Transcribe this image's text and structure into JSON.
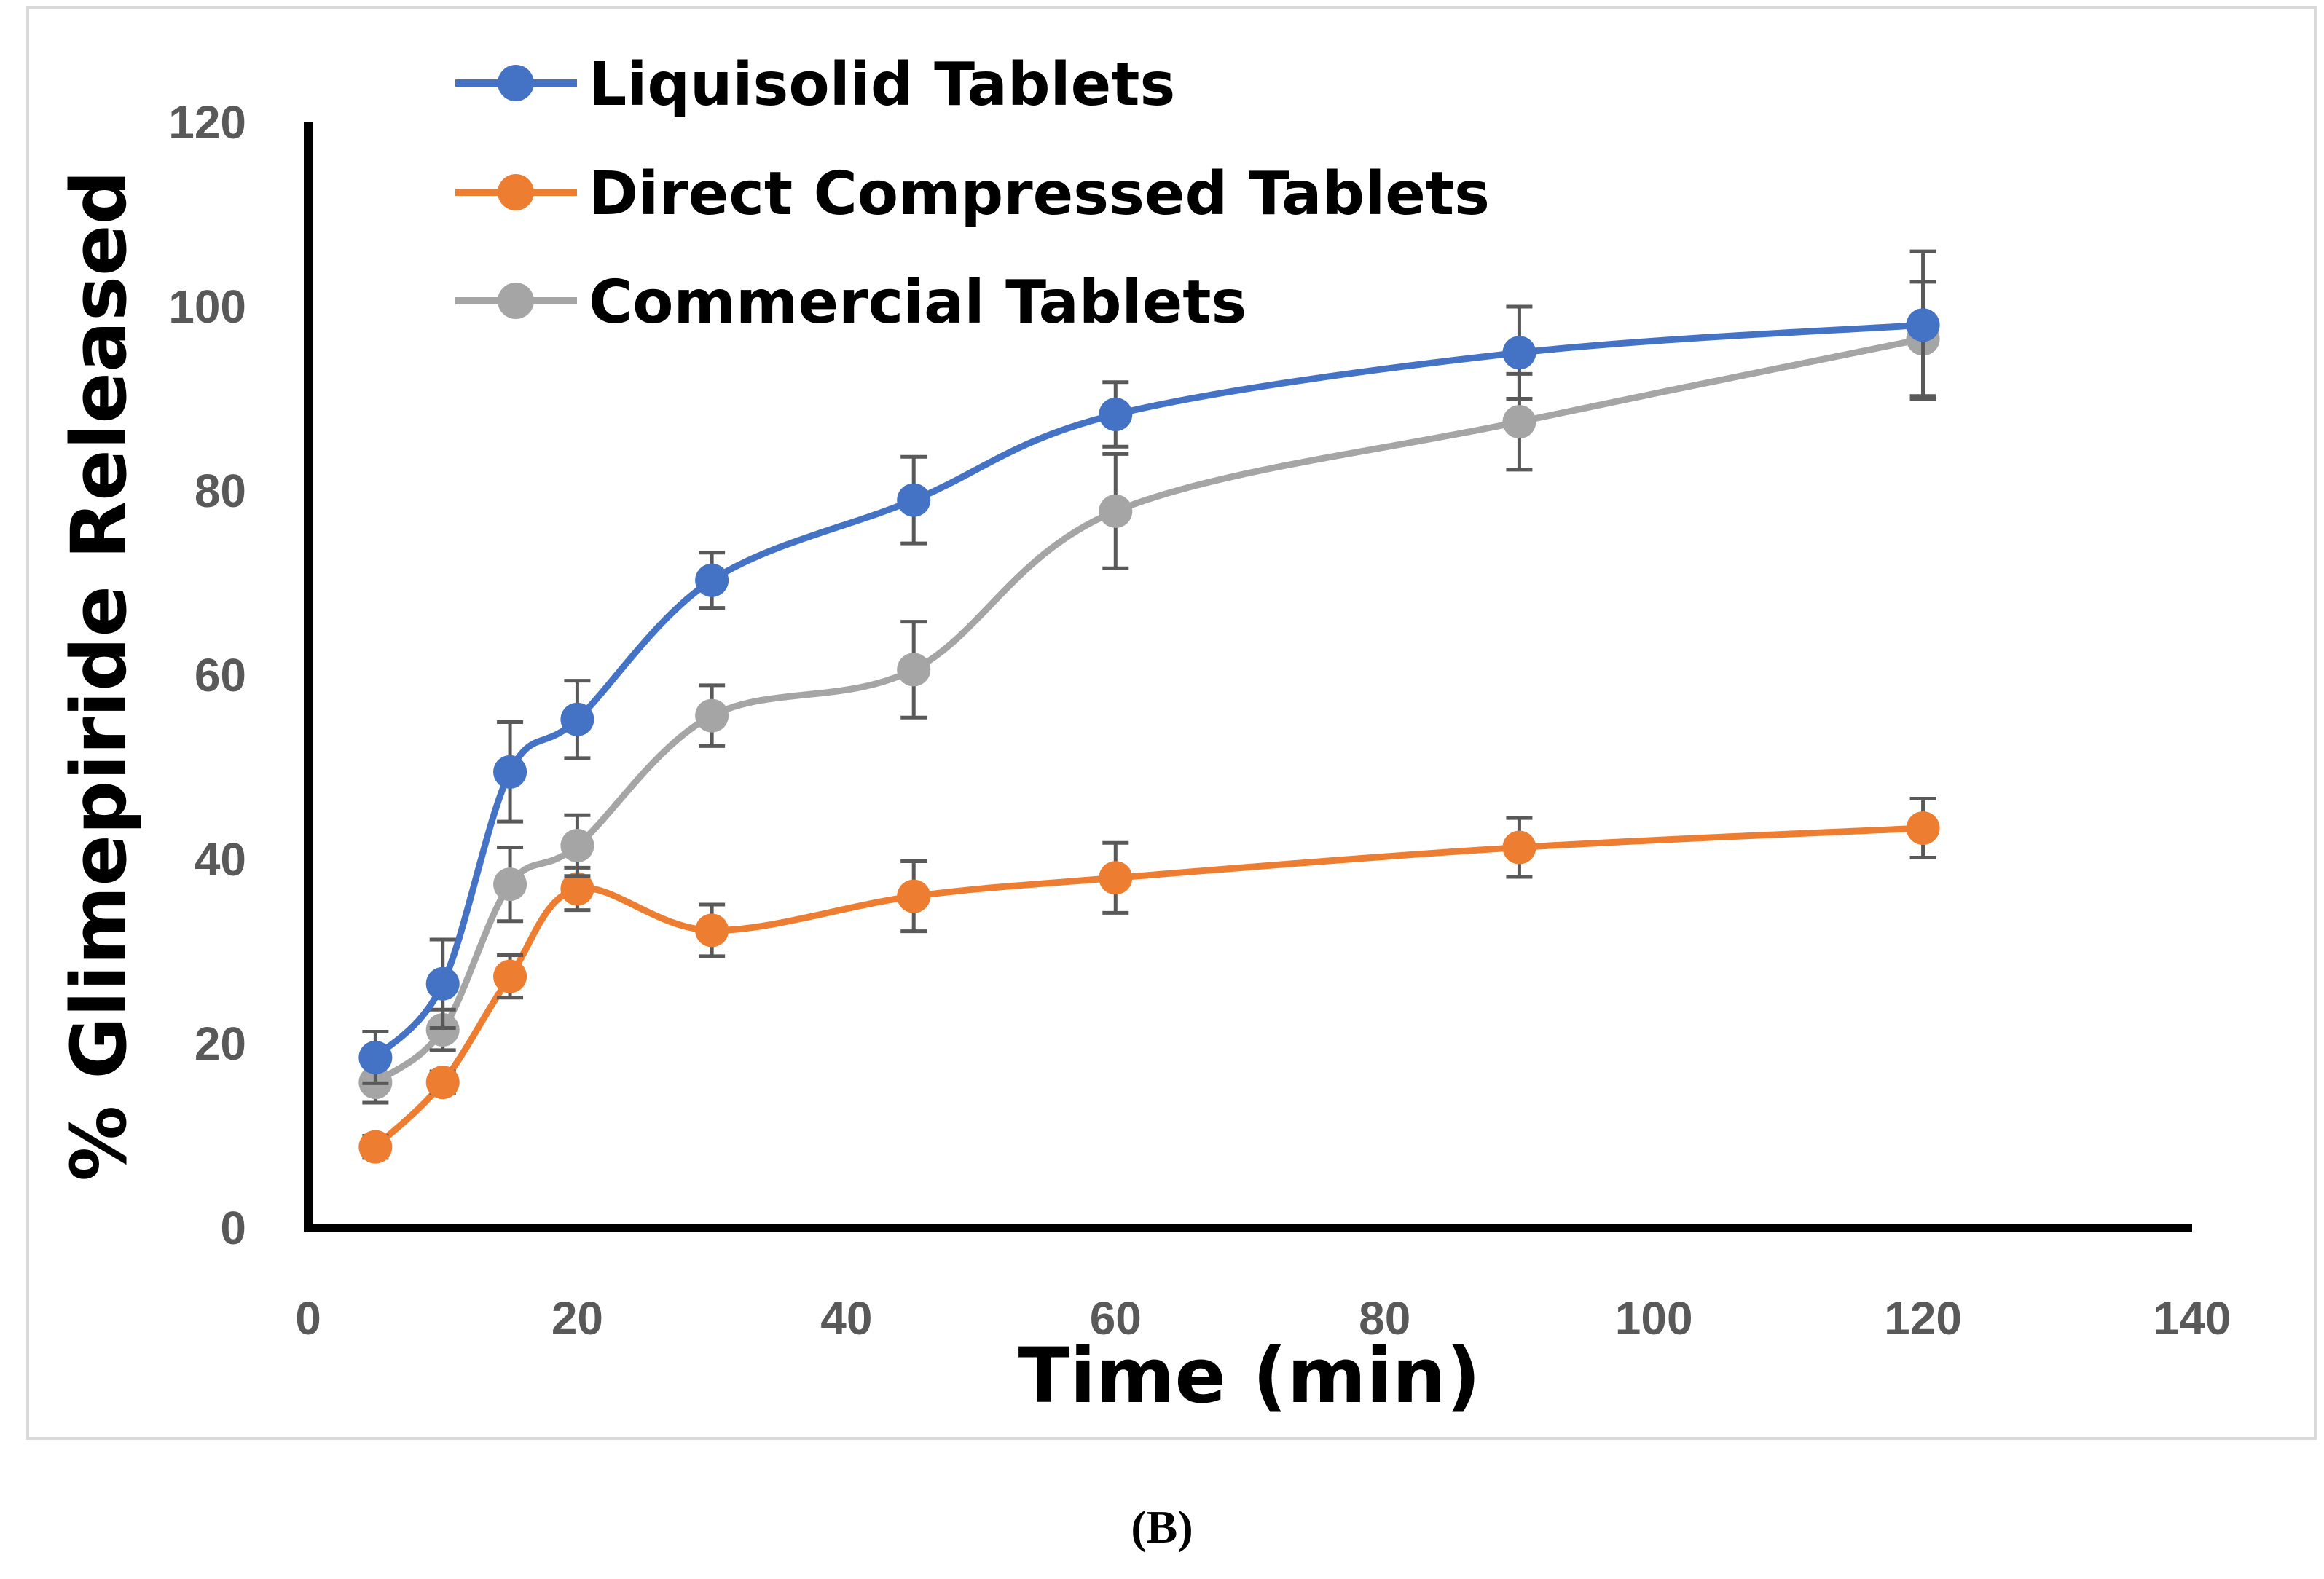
{
  "chart_data": {
    "type": "line",
    "title": "",
    "xlabel": "Time (min)",
    "ylabel": "% Glimepiride Released",
    "xlim": [
      0,
      140
    ],
    "ylim": [
      0,
      120
    ],
    "xticks": [
      0,
      20,
      40,
      60,
      80,
      100,
      120,
      140
    ],
    "yticks": [
      0,
      20,
      40,
      60,
      80,
      100,
      120
    ],
    "grid": false,
    "legend_position": "top-left",
    "x": [
      5,
      10,
      15,
      20,
      30,
      45,
      60,
      90,
      120
    ],
    "series": [
      {
        "name": "Liquisolid Tablets",
        "color": "#4472c4",
        "values": [
          18.5,
          26.5,
          49.5,
          55.2,
          70.3,
          79.0,
          88.3,
          95.0,
          98.0
        ],
        "errors": [
          2.8,
          4.8,
          5.4,
          4.2,
          3.0,
          4.7,
          3.5,
          5.0,
          8.0
        ]
      },
      {
        "name": "Direct Compressed Tablets",
        "color": "#ed7d31",
        "values": [
          8.8,
          15.8,
          27.3,
          36.8,
          32.3,
          36.0,
          38.0,
          41.3,
          43.4
        ],
        "errors": [
          1.2,
          1.2,
          2.3,
          2.3,
          2.8,
          3.8,
          3.8,
          3.2,
          3.2
        ]
      },
      {
        "name": "Commercial Tablets",
        "color": "#a5a5a5",
        "values": [
          15.8,
          21.5,
          37.3,
          41.5,
          55.6,
          60.6,
          77.8,
          87.5,
          96.5
        ],
        "errors": [
          2.2,
          2.2,
          4.0,
          3.3,
          3.3,
          5.2,
          6.2,
          5.2,
          6.2
        ]
      }
    ]
  },
  "caption": "(B)"
}
